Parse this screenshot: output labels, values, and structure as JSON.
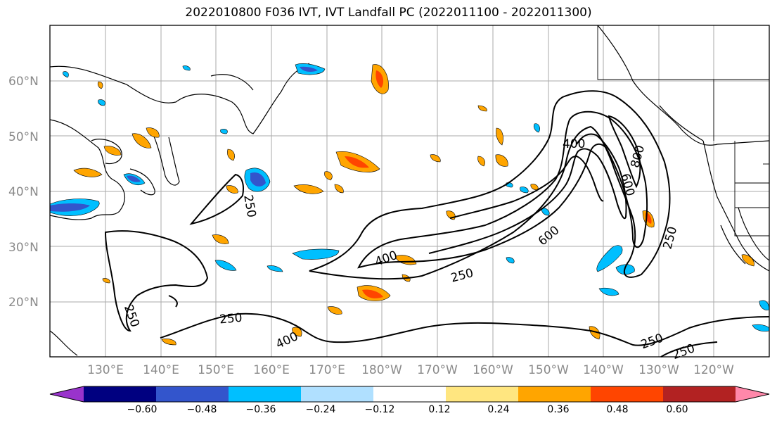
{
  "title": "2022010800 F036 IVT, IVT Landfall PC (2022011100 - 2022011300)",
  "lat_labels": [
    "20°N",
    "30°N",
    "40°N",
    "50°N",
    "60°N"
  ],
  "lon_labels": [
    "130°E",
    "140°E",
    "150°E",
    "160°E",
    "170°E",
    "180°W",
    "170°W",
    "160°W",
    "150°W",
    "140°W",
    "130°W",
    "120°W"
  ],
  "contour_labels": [
    "400",
    "800",
    "600",
    "250",
    "600",
    "400",
    "250",
    "250",
    "400",
    "250",
    "250",
    "250",
    "250"
  ],
  "colorbar": {
    "ticks": [
      "−0.60",
      "−0.48",
      "−0.36",
      "−0.24",
      "−0.12",
      "0.12",
      "0.24",
      "0.36",
      "0.48",
      "0.60"
    ],
    "colors": [
      "#9933cc",
      "#000080",
      "#3355cc",
      "#00bfff",
      "#b0e0ff",
      "#ffffff",
      "#ffe680",
      "#ffa500",
      "#ff4500",
      "#b22222",
      "#ff88aa"
    ]
  },
  "colors": {
    "grid": "#aaaaaa",
    "land_line": "#000000",
    "contour": "#000000",
    "positive_low": "#ffe680",
    "positive_mid": "#ffa500",
    "positive_high": "#ff4500",
    "negative_low": "#b0e0ff",
    "negative_mid": "#00bfff",
    "negative_high": "#3355cc"
  }
}
